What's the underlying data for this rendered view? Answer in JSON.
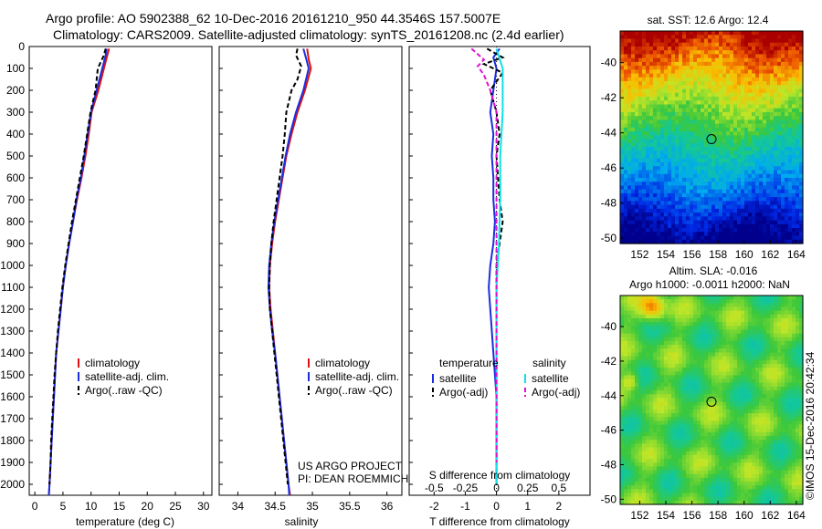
{
  "header": {
    "line1": "Argo profile: AO 5902388_62 10-Dec-2016 20161210_950 44.3546S 157.5007E",
    "line2": "Climatology: CARS2009. Satellite-adjusted climatology: synTS_20161208.nc (2.4d earlier)"
  },
  "colors": {
    "climatology": "#e01010",
    "satellite": "#1a2ee0",
    "argo": "#000000",
    "sat_salinity": "#10e0e8",
    "argo_salinity": "#e010d0"
  },
  "depth_axis": {
    "range": [
      0,
      2050
    ],
    "ticks": [
      "0",
      "100",
      "200",
      "300",
      "400",
      "500",
      "600",
      "700",
      "800",
      "900",
      "1000",
      "1100",
      "1200",
      "1300",
      "1400",
      "1500",
      "1600",
      "1700",
      "1800",
      "1900",
      "2000"
    ]
  },
  "chart_data": [
    {
      "type": "line",
      "id": "temperature",
      "xlabel": "temperature (deg C)",
      "xlim": [
        -1,
        31.5
      ],
      "xticks": [
        "0",
        "5",
        "10",
        "15",
        "20",
        "25",
        "30"
      ],
      "legend": [
        "climatology",
        "satellite-adj. clim.",
        "Argo(..raw -QC)"
      ],
      "series": [
        {
          "name": "climatology",
          "points": [
            [
              13.2,
              10
            ],
            [
              12.9,
              40
            ],
            [
              12.3,
              100
            ],
            [
              11.3,
              200
            ],
            [
              10.1,
              300
            ],
            [
              9.6,
              400
            ],
            [
              9.0,
              500
            ],
            [
              8.3,
              600
            ],
            [
              7.5,
              700
            ],
            [
              6.8,
              800
            ],
            [
              6.1,
              900
            ],
            [
              5.5,
              1000
            ],
            [
              5.0,
              1100
            ],
            [
              4.6,
              1200
            ],
            [
              4.2,
              1300
            ],
            [
              3.8,
              1400
            ],
            [
              3.6,
              1500
            ],
            [
              3.4,
              1600
            ],
            [
              3.2,
              1700
            ],
            [
              3.0,
              1800
            ],
            [
              2.8,
              1900
            ],
            [
              2.6,
              2000
            ],
            [
              2.5,
              2050
            ]
          ]
        },
        {
          "name": "satellite-adj. clim.",
          "points": [
            [
              12.8,
              10
            ],
            [
              12.6,
              40
            ],
            [
              12.0,
              100
            ],
            [
              11.0,
              200
            ],
            [
              10.0,
              300
            ],
            [
              9.4,
              400
            ],
            [
              8.8,
              500
            ],
            [
              8.2,
              600
            ],
            [
              7.4,
              700
            ],
            [
              6.8,
              800
            ],
            [
              6.1,
              900
            ],
            [
              5.5,
              1000
            ],
            [
              5.0,
              1100
            ],
            [
              4.6,
              1200
            ],
            [
              4.2,
              1300
            ],
            [
              3.8,
              1400
            ],
            [
              3.6,
              1500
            ],
            [
              3.4,
              1600
            ],
            [
              3.2,
              1700
            ],
            [
              3.0,
              1800
            ],
            [
              2.8,
              1900
            ],
            [
              2.6,
              2000
            ],
            [
              2.5,
              2050
            ]
          ]
        },
        {
          "name": "Argo(..raw -QC)",
          "points": [
            [
              12.6,
              10
            ],
            [
              12.3,
              40
            ],
            [
              11.2,
              100
            ],
            [
              10.8,
              200
            ],
            [
              9.9,
              300
            ],
            [
              9.3,
              400
            ],
            [
              8.7,
              500
            ],
            [
              8.0,
              600
            ],
            [
              7.3,
              700
            ],
            [
              6.6,
              800
            ],
            [
              6.0,
              900
            ],
            [
              5.4,
              1000
            ],
            [
              4.9,
              1100
            ],
            [
              4.5,
              1200
            ],
            [
              4.1,
              1300
            ],
            [
              3.8,
              1400
            ],
            [
              3.5,
              1500
            ],
            [
              3.3,
              1600
            ],
            [
              3.1,
              1700
            ],
            [
              2.9,
              1800
            ],
            [
              2.8,
              1900
            ],
            [
              2.6,
              2000
            ]
          ]
        }
      ]
    },
    {
      "type": "line",
      "id": "salinity",
      "xlabel": "salinity",
      "xlim": [
        33.75,
        36.2
      ],
      "xticks": [
        "34",
        "34.5",
        "35",
        "35.5",
        "36"
      ],
      "legend": [
        "climatology",
        "satellite-adj. clim.",
        "Argo(..raw -QC)"
      ],
      "annotation": [
        "US ARGO PROJECT",
        "PI: DEAN ROEMMICH"
      ],
      "series": [
        {
          "name": "climatology",
          "points": [
            [
              34.93,
              10
            ],
            [
              34.95,
              60
            ],
            [
              34.98,
              100
            ],
            [
              34.9,
              200
            ],
            [
              34.8,
              300
            ],
            [
              34.72,
              400
            ],
            [
              34.65,
              500
            ],
            [
              34.6,
              600
            ],
            [
              34.55,
              700
            ],
            [
              34.5,
              800
            ],
            [
              34.46,
              900
            ],
            [
              34.43,
              1000
            ],
            [
              34.42,
              1100
            ],
            [
              34.44,
              1200
            ],
            [
              34.47,
              1300
            ],
            [
              34.5,
              1400
            ],
            [
              34.53,
              1500
            ],
            [
              34.56,
              1600
            ],
            [
              34.59,
              1700
            ],
            [
              34.62,
              1800
            ],
            [
              34.65,
              1900
            ],
            [
              34.68,
              2000
            ],
            [
              34.7,
              2050
            ]
          ]
        },
        {
          "name": "satellite-adj. clim.",
          "points": [
            [
              34.88,
              10
            ],
            [
              34.92,
              60
            ],
            [
              34.95,
              100
            ],
            [
              34.88,
              200
            ],
            [
              34.78,
              300
            ],
            [
              34.7,
              400
            ],
            [
              34.64,
              500
            ],
            [
              34.59,
              600
            ],
            [
              34.54,
              700
            ],
            [
              34.49,
              800
            ],
            [
              34.45,
              900
            ],
            [
              34.42,
              1000
            ],
            [
              34.41,
              1100
            ],
            [
              34.43,
              1200
            ],
            [
              34.46,
              1300
            ],
            [
              34.5,
              1400
            ],
            [
              34.53,
              1500
            ],
            [
              34.56,
              1600
            ],
            [
              34.59,
              1700
            ],
            [
              34.62,
              1800
            ],
            [
              34.65,
              1900
            ],
            [
              34.68,
              2000
            ],
            [
              34.69,
              2050
            ]
          ]
        },
        {
          "name": "Argo(..raw -QC)",
          "points": [
            [
              34.8,
              10
            ],
            [
              34.78,
              40
            ],
            [
              34.85,
              90
            ],
            [
              34.8,
              150
            ],
            [
              34.72,
              200
            ],
            [
              34.65,
              300
            ],
            [
              34.63,
              400
            ],
            [
              34.6,
              500
            ],
            [
              34.56,
              600
            ],
            [
              34.52,
              700
            ],
            [
              34.48,
              800
            ],
            [
              34.45,
              900
            ],
            [
              34.43,
              1000
            ],
            [
              34.42,
              1100
            ],
            [
              34.43,
              1200
            ],
            [
              34.46,
              1300
            ],
            [
              34.49,
              1400
            ],
            [
              34.52,
              1500
            ],
            [
              34.55,
              1600
            ],
            [
              34.58,
              1700
            ],
            [
              34.61,
              1800
            ],
            [
              34.64,
              1900
            ],
            [
              34.67,
              2000
            ]
          ]
        }
      ]
    },
    {
      "type": "line",
      "id": "difference",
      "xlabel": "T difference from climatology",
      "xlabel_top": "S difference from climatology",
      "xlim": [
        -2.8,
        3.0
      ],
      "xticks": [
        "-2",
        "-1",
        "0",
        "1",
        "2"
      ],
      "xticks_top": [
        "-0.5",
        "-0.25",
        "0",
        "0.25",
        "0.5"
      ],
      "legend_titles": [
        "temperature",
        "salinity"
      ],
      "legend": [
        "satellite",
        "Argo(-adj)",
        "satellite",
        "Argo(-adj)"
      ],
      "series": [
        {
          "name": "T satellite",
          "points": [
            [
              0.1,
              10
            ],
            [
              -0.1,
              50
            ],
            [
              0.0,
              100
            ],
            [
              -0.1,
              200
            ],
            [
              -0.2,
              300
            ],
            [
              -0.1,
              400
            ],
            [
              -0.15,
              500
            ],
            [
              -0.1,
              600
            ],
            [
              -0.1,
              700
            ],
            [
              -0.05,
              800
            ],
            [
              -0.1,
              900
            ],
            [
              -0.2,
              1000
            ],
            [
              -0.25,
              1100
            ],
            [
              -0.2,
              1200
            ],
            [
              -0.15,
              1300
            ],
            [
              -0.1,
              1400
            ],
            [
              -0.05,
              1500
            ],
            [
              0.0,
              1600
            ],
            [
              0.0,
              1700
            ],
            [
              0.0,
              1800
            ],
            [
              0.0,
              1900
            ],
            [
              0.0,
              2000
            ]
          ]
        },
        {
          "name": "T Argo(-adj)",
          "points": [
            [
              -0.3,
              10
            ],
            [
              0.2,
              50
            ],
            [
              -0.4,
              80
            ],
            [
              0.2,
              120
            ],
            [
              -0.2,
              200
            ],
            [
              0.0,
              300
            ],
            [
              0.1,
              400
            ],
            [
              0.0,
              500
            ],
            [
              0.05,
              600
            ],
            [
              0.1,
              700
            ],
            [
              0.2,
              800
            ],
            [
              0.1,
              900
            ],
            [
              0.0,
              1000
            ],
            [
              0.0,
              1200
            ],
            [
              0.0,
              1400
            ],
            [
              0.0,
              1600
            ],
            [
              0.0,
              1800
            ],
            [
              0.0,
              2000
            ]
          ]
        },
        {
          "name": "S satellite",
          "points": [
            [
              0.0,
              10
            ],
            [
              0.05,
              100
            ],
            [
              0.05,
              300
            ],
            [
              0.03,
              500
            ],
            [
              0.03,
              700
            ],
            [
              0.02,
              900
            ],
            [
              0.0,
              1100
            ],
            [
              0.0,
              1300
            ],
            [
              0.0,
              1500
            ],
            [
              0.0,
              1700
            ],
            [
              0.0,
              1900
            ],
            [
              0.0,
              2000
            ]
          ]
        },
        {
          "name": "S Argo(-adj)",
          "points": [
            [
              -0.2,
              10
            ],
            [
              -0.1,
              60
            ],
            [
              -0.15,
              90
            ],
            [
              -0.1,
              130
            ],
            [
              -0.05,
              200
            ],
            [
              0.0,
              300
            ],
            [
              0.0,
              500
            ],
            [
              0.0,
              700
            ],
            [
              0.0,
              900
            ],
            [
              0.0,
              1100
            ],
            [
              0.0,
              1300
            ],
            [
              0.0,
              1500
            ],
            [
              0.0,
              1700
            ],
            [
              0.0,
              1900
            ]
          ]
        }
      ]
    },
    {
      "type": "heatmap",
      "id": "sst_map",
      "title": "sat. SST: 12.6 Argo: 12.4",
      "xticks": [
        "152",
        "154",
        "156",
        "158",
        "160",
        "162",
        "164"
      ],
      "yticks": [
        "-40",
        "-42",
        "-44",
        "-46",
        "-48",
        "-50"
      ],
      "xlim": [
        150.5,
        164.5
      ],
      "ylim": [
        -50.3,
        -38.2
      ],
      "marker": {
        "lon": 157.5007,
        "lat": -44.3546
      }
    },
    {
      "type": "heatmap",
      "id": "sla_map",
      "title": "Altim. SLA: -0.016",
      "subtitle": "Argo h1000: -0.0011 h2000: NaN",
      "xticks": [
        "152",
        "154",
        "156",
        "158",
        "160",
        "162",
        "164"
      ],
      "yticks": [
        "-40",
        "-42",
        "-44",
        "-46",
        "-48",
        "-50"
      ],
      "xlim": [
        150.5,
        164.5
      ],
      "ylim": [
        -50.3,
        -38.2
      ],
      "marker": {
        "lon": 157.5007,
        "lat": -44.3546
      }
    }
  ],
  "footer_stamp": "©IMOS 15-Dec-2016 20:42:34"
}
